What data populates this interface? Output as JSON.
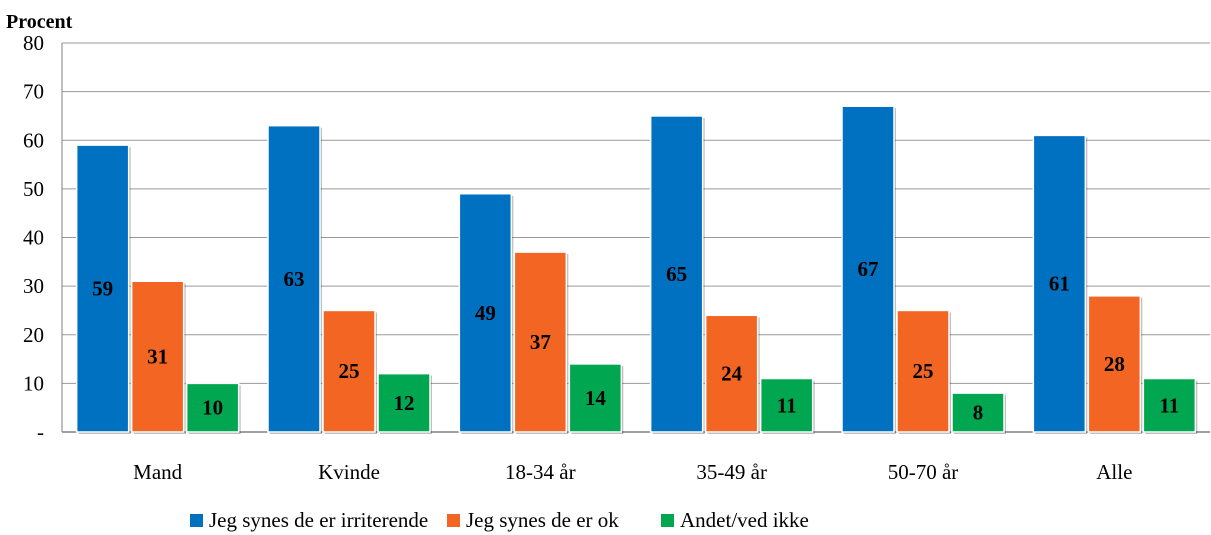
{
  "chart_data": {
    "type": "bar",
    "unit_label": "Procent",
    "categories": [
      "Mand",
      "Kvinde",
      "18-34 år",
      "35-49 år",
      "50-70 år",
      "Alle"
    ],
    "series": [
      {
        "name": "Jeg synes de er irriterende",
        "color": "#0070C0",
        "values": [
          59,
          63,
          49,
          65,
          67,
          61
        ]
      },
      {
        "name": "Jeg synes de er ok",
        "color": "#F26522",
        "values": [
          31,
          25,
          37,
          24,
          25,
          28
        ]
      },
      {
        "name": "Andet/ved ikke",
        "color": "#00A650",
        "values": [
          10,
          12,
          14,
          11,
          8,
          11
        ]
      }
    ],
    "ylim": [
      0,
      80
    ],
    "yticks": [
      0,
      10,
      20,
      30,
      40,
      50,
      60,
      70,
      80
    ],
    "ytick_labels": [
      "-",
      "10",
      "20",
      "30",
      "40",
      "50",
      "60",
      "70",
      "80"
    ],
    "grid": true,
    "legend_position": "bottom"
  }
}
